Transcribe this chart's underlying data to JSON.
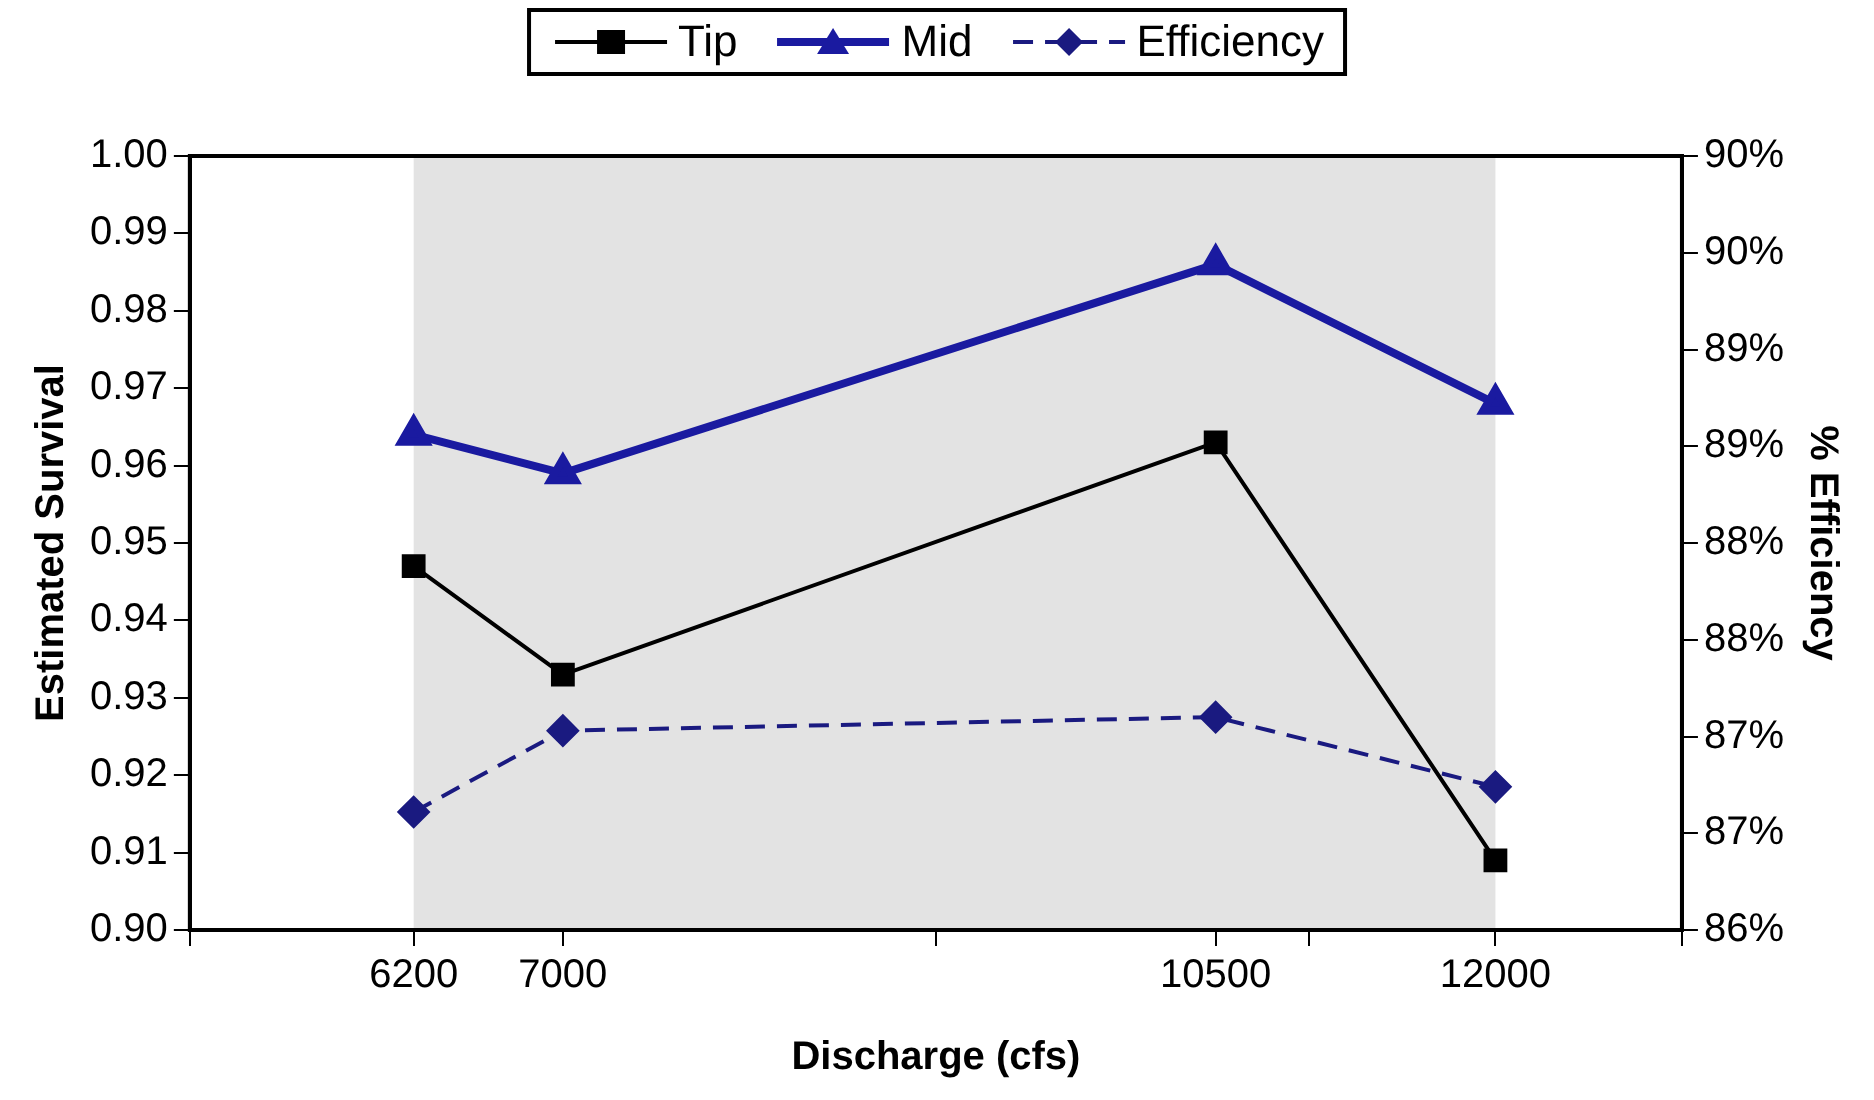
{
  "chart_data": {
    "type": "line",
    "xlabel": "Discharge (cfs)",
    "ylabel": "Estimated Survival",
    "y2label": "% Efficiency",
    "x": [
      6200,
      7000,
      10500,
      12000
    ],
    "series": [
      {
        "name": "Tip",
        "color": "#000000",
        "values": [
          0.947,
          0.933,
          0.963,
          0.909
        ],
        "marker": "square",
        "line_style": "solid"
      },
      {
        "name": "Mid",
        "color": "#1a1aa0",
        "values": [
          0.964,
          0.959,
          0.986,
          0.968
        ],
        "marker": "triangle",
        "line_style": "solid"
      },
      {
        "name": "Efficiency",
        "color": "#1a1a80",
        "values": [
          86.61,
          87.03,
          87.1,
          86.74
        ],
        "marker": "diamond",
        "line_style": "dashed",
        "axis": "y2"
      }
    ],
    "xlim": [
      5000,
      13000
    ],
    "xticks": [
      {
        "value": 5000,
        "label": null
      },
      6200,
      7000,
      {
        "value": 9000,
        "label": null
      },
      10500,
      {
        "value": 11000,
        "label": null
      },
      12000,
      {
        "value": 13000,
        "label": null
      }
    ],
    "ylim": [
      0.9,
      1.0
    ],
    "yticks": [
      {
        "value": 0.9,
        "label": "0.90"
      },
      0.91,
      0.92,
      0.93,
      0.94,
      0.95,
      0.96,
      0.97,
      0.98,
      0.99,
      {
        "value": 1.0,
        "label": "1.00"
      }
    ],
    "y2lim": [
      86,
      90
    ],
    "y2ticks": [
      {
        "value": 86,
        "label": "86%"
      },
      {
        "value": 86.5,
        "label": "87%"
      },
      {
        "value": 87,
        "label": "87%"
      },
      {
        "value": 87.5,
        "label": "88%"
      },
      {
        "value": 88,
        "label": "88%"
      },
      {
        "value": 88.5,
        "label": "89%"
      },
      {
        "value": 89,
        "label": "89%"
      },
      {
        "value": 89.5,
        "label": "90%"
      },
      {
        "value": 90,
        "label": "90%"
      }
    ],
    "bands": [
      {
        "axis": "x",
        "from": 6200,
        "to": 12000,
        "color": "#e3e3e3"
      }
    ],
    "grid": false,
    "legend": "top"
  }
}
